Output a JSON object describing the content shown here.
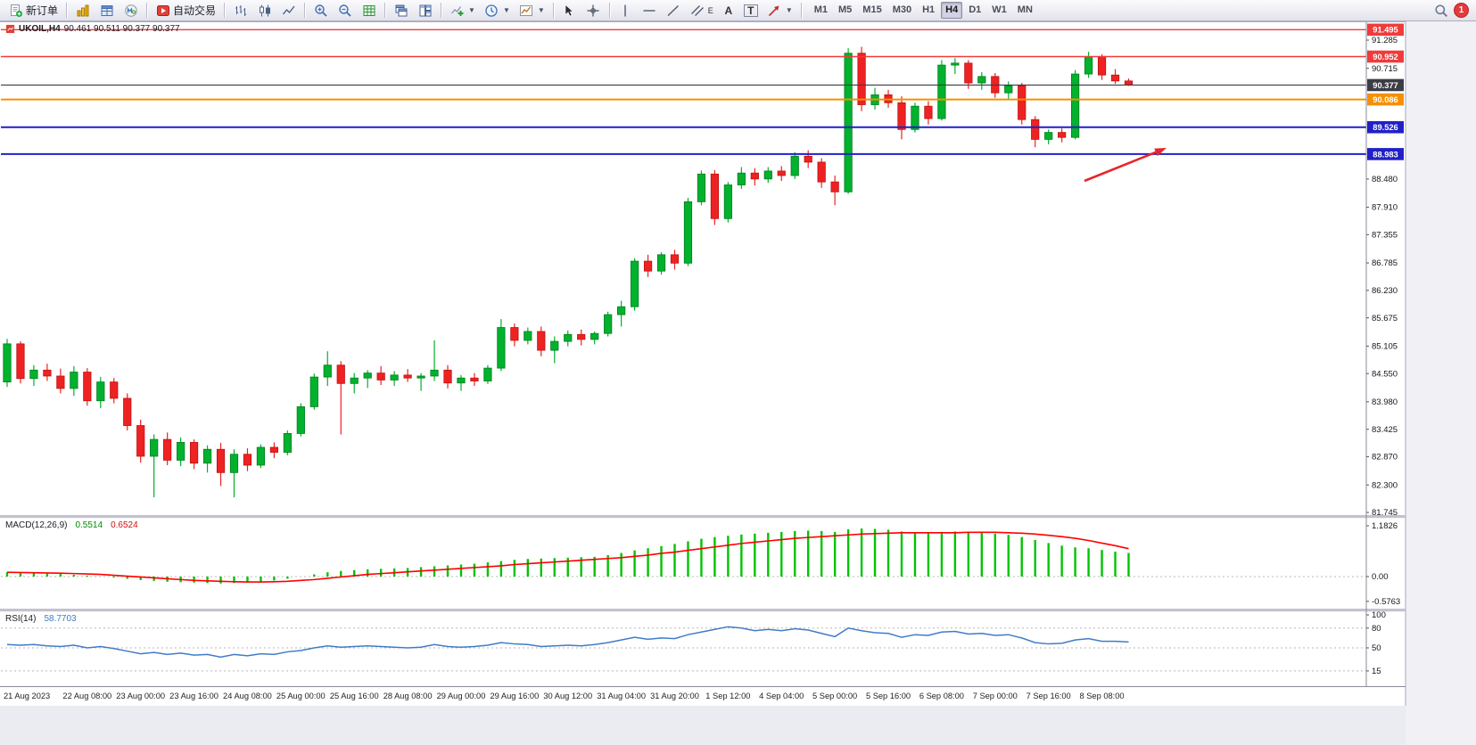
{
  "toolbar": {
    "new_order": "新订单",
    "auto_trading": "自动交易",
    "text_tool": "A",
    "label_tool": "T",
    "channel_letter": "E",
    "timeframes": [
      "M1",
      "M5",
      "M15",
      "M30",
      "H1",
      "H4",
      "D1",
      "W1",
      "MN"
    ],
    "active_timeframe": "H4",
    "notification_count": "1"
  },
  "chart_header": {
    "symbol_period": "UKOIL,H4",
    "ohlc": "90.461 90.511 90.377 90.377"
  },
  "indicators": {
    "macd": {
      "label": "MACD(12,26,9)",
      "main_value": "0.5514",
      "signal_value": "0.6524"
    },
    "rsi": {
      "label": "RSI(14)",
      "value": "58.7703"
    }
  },
  "price_scale": {
    "ticks": [
      "91.285",
      "90.715",
      "88.480",
      "87.910",
      "87.355",
      "86.785",
      "86.230",
      "85.675",
      "85.105",
      "84.550",
      "83.980",
      "83.425",
      "82.870",
      "82.300",
      "81.745"
    ]
  },
  "chart_data": {
    "type": "candlestick",
    "symbol": "UKOIL",
    "period": "H4",
    "ylim": [
      81.6,
      91.66
    ],
    "colors": {
      "up": "#00b22d",
      "up_stroke": "#007d1f",
      "down": "#ee2222",
      "down_stroke": "#bf1010",
      "macd_hist": "#00c400",
      "macd_signal": "#ff0000",
      "rsi_line": "#3f7cc8",
      "annotation": "#e8252a"
    },
    "hlines": [
      {
        "price": 91.495,
        "label": "91.495",
        "color": "#f03b3b",
        "width": 1.4
      },
      {
        "price": 90.952,
        "label": "90.952",
        "color": "#f03b3b",
        "width": 1.4
      },
      {
        "price": 90.377,
        "label": "90.377",
        "color": "#3c3c46",
        "width": 1.2
      },
      {
        "price": 90.086,
        "label": "90.086",
        "color": "#f59000",
        "width": 2
      },
      {
        "price": 89.526,
        "label": "89.526",
        "color": "#2020c8",
        "width": 2
      },
      {
        "price": 88.983,
        "label": "88.983",
        "color": "#2020c8",
        "width": 2
      }
    ],
    "candles": [
      [
        84.38,
        85.25,
        84.28,
        85.15
      ],
      [
        85.15,
        85.2,
        84.35,
        84.45
      ],
      [
        84.45,
        84.72,
        84.3,
        84.62
      ],
      [
        84.62,
        84.75,
        84.4,
        84.5
      ],
      [
        84.5,
        84.65,
        84.15,
        84.25
      ],
      [
        84.25,
        84.7,
        84.1,
        84.58
      ],
      [
        84.58,
        84.66,
        83.9,
        84.0
      ],
      [
        84.0,
        84.48,
        83.85,
        84.38
      ],
      [
        84.38,
        84.46,
        83.95,
        84.05
      ],
      [
        84.05,
        84.15,
        83.4,
        83.5
      ],
      [
        83.5,
        83.62,
        82.75,
        82.88
      ],
      [
        82.88,
        83.32,
        82.05,
        83.22
      ],
      [
        83.22,
        83.36,
        82.7,
        82.8
      ],
      [
        82.8,
        83.26,
        82.68,
        83.16
      ],
      [
        83.16,
        83.22,
        82.62,
        82.74
      ],
      [
        82.74,
        83.1,
        82.55,
        83.02
      ],
      [
        83.02,
        83.15,
        82.28,
        82.55
      ],
      [
        82.55,
        83.02,
        82.05,
        82.92
      ],
      [
        82.92,
        83.04,
        82.58,
        82.7
      ],
      [
        82.7,
        83.12,
        82.64,
        83.06
      ],
      [
        83.06,
        83.16,
        82.84,
        82.96
      ],
      [
        82.96,
        83.4,
        82.9,
        83.34
      ],
      [
        83.34,
        83.95,
        83.28,
        83.88
      ],
      [
        83.88,
        84.55,
        83.82,
        84.48
      ],
      [
        84.48,
        85.0,
        84.3,
        84.72
      ],
      [
        84.72,
        84.8,
        83.32,
        84.35
      ],
      [
        84.35,
        84.56,
        84.15,
        84.46
      ],
      [
        84.46,
        84.62,
        84.26,
        84.56
      ],
      [
        84.56,
        84.7,
        84.32,
        84.42
      ],
      [
        84.42,
        84.6,
        84.3,
        84.52
      ],
      [
        84.52,
        84.64,
        84.38,
        84.46
      ],
      [
        84.46,
        84.56,
        84.2,
        84.5
      ],
      [
        84.5,
        85.22,
        84.4,
        84.62
      ],
      [
        84.62,
        84.72,
        84.25,
        84.36
      ],
      [
        84.36,
        84.52,
        84.2,
        84.46
      ],
      [
        84.46,
        84.56,
        84.3,
        84.4
      ],
      [
        84.4,
        84.72,
        84.34,
        84.66
      ],
      [
        84.66,
        85.65,
        84.6,
        85.48
      ],
      [
        85.48,
        85.56,
        85.1,
        85.22
      ],
      [
        85.22,
        85.48,
        85.14,
        85.4
      ],
      [
        85.4,
        85.5,
        84.9,
        85.02
      ],
      [
        85.02,
        85.3,
        84.76,
        85.2
      ],
      [
        85.2,
        85.42,
        85.1,
        85.34
      ],
      [
        85.34,
        85.44,
        85.12,
        85.24
      ],
      [
        85.24,
        85.4,
        85.14,
        85.36
      ],
      [
        85.36,
        85.8,
        85.3,
        85.74
      ],
      [
        85.74,
        86.02,
        85.5,
        85.9
      ],
      [
        85.9,
        86.88,
        85.82,
        86.82
      ],
      [
        86.82,
        86.95,
        86.5,
        86.62
      ],
      [
        86.62,
        87.0,
        86.55,
        86.95
      ],
      [
        86.95,
        87.05,
        86.65,
        86.78
      ],
      [
        86.78,
        88.1,
        86.72,
        88.02
      ],
      [
        88.02,
        88.65,
        87.95,
        88.58
      ],
      [
        88.58,
        88.66,
        87.55,
        87.68
      ],
      [
        87.68,
        88.42,
        87.6,
        88.36
      ],
      [
        88.36,
        88.72,
        88.28,
        88.6
      ],
      [
        88.6,
        88.7,
        88.35,
        88.48
      ],
      [
        88.48,
        88.72,
        88.4,
        88.64
      ],
      [
        88.64,
        88.74,
        88.44,
        88.55
      ],
      [
        88.55,
        89.02,
        88.48,
        88.94
      ],
      [
        88.94,
        89.06,
        88.7,
        88.82
      ],
      [
        88.82,
        88.9,
        88.3,
        88.42
      ],
      [
        88.42,
        88.55,
        87.95,
        88.22
      ],
      [
        88.22,
        91.12,
        88.18,
        91.02
      ],
      [
        91.02,
        91.15,
        89.85,
        89.98
      ],
      [
        89.98,
        90.32,
        89.88,
        90.18
      ],
      [
        90.18,
        90.28,
        89.92,
        90.02
      ],
      [
        90.02,
        90.15,
        89.28,
        89.48
      ],
      [
        89.48,
        90.02,
        89.42,
        89.95
      ],
      [
        89.95,
        90.05,
        89.58,
        89.7
      ],
      [
        89.7,
        90.88,
        89.66,
        90.78
      ],
      [
        90.78,
        90.92,
        90.6,
        90.82
      ],
      [
        90.82,
        90.88,
        90.3,
        90.42
      ],
      [
        90.42,
        90.64,
        90.28,
        90.55
      ],
      [
        90.55,
        90.62,
        90.12,
        90.22
      ],
      [
        90.22,
        90.45,
        90.08,
        90.36
      ],
      [
        90.36,
        90.42,
        89.58,
        89.68
      ],
      [
        89.68,
        89.75,
        89.12,
        89.28
      ],
      [
        89.28,
        89.48,
        89.18,
        89.42
      ],
      [
        89.42,
        89.5,
        89.22,
        89.32
      ],
      [
        89.32,
        90.68,
        89.28,
        90.6
      ],
      [
        90.6,
        91.05,
        90.52,
        90.95
      ],
      [
        90.95,
        91.0,
        90.48,
        90.58
      ],
      [
        90.58,
        90.7,
        90.4,
        90.46
      ],
      [
        90.46,
        90.51,
        90.36,
        90.38
      ]
    ],
    "time_labels": [
      "21 Aug 2023",
      "22 Aug 08:00",
      "23 Aug 00:00",
      "23 Aug 16:00",
      "24 Aug 08:00",
      "25 Aug 00:00",
      "25 Aug 16:00",
      "28 Aug 08:00",
      "29 Aug 00:00",
      "29 Aug 16:00",
      "30 Aug 12:00",
      "31 Aug 04:00",
      "31 Aug 20:00",
      "1 Sep 12:00",
      "4 Sep 04:00",
      "5 Sep 00:00",
      "5 Sep 16:00",
      "6 Sep 08:00",
      "7 Sep 00:00",
      "7 Sep 16:00",
      "8 Sep 08:00"
    ],
    "label_first_candle": 2,
    "label_every": 4,
    "macd": {
      "scale": [
        "1.1826",
        "0.00",
        "-0.5763"
      ],
      "ylim": [
        -0.5763,
        1.1826
      ],
      "histogram": [
        0.1,
        0.09,
        0.08,
        0.07,
        0.06,
        0.04,
        0.02,
        0.0,
        -0.02,
        -0.05,
        -0.08,
        -0.1,
        -0.12,
        -0.13,
        -0.14,
        -0.15,
        -0.16,
        -0.15,
        -0.14,
        -0.12,
        -0.09,
        -0.05,
        0.0,
        0.05,
        0.1,
        0.13,
        0.15,
        0.17,
        0.18,
        0.19,
        0.2,
        0.22,
        0.24,
        0.26,
        0.28,
        0.3,
        0.33,
        0.36,
        0.39,
        0.41,
        0.42,
        0.43,
        0.44,
        0.45,
        0.46,
        0.5,
        0.55,
        0.61,
        0.66,
        0.71,
        0.76,
        0.82,
        0.88,
        0.92,
        0.95,
        0.98,
        1.0,
        1.02,
        1.04,
        1.06,
        1.07,
        1.06,
        1.04,
        1.1,
        1.12,
        1.11,
        1.09,
        1.05,
        1.03,
        1.02,
        1.04,
        1.05,
        1.04,
        1.02,
        1.0,
        0.97,
        0.92,
        0.85,
        0.78,
        0.72,
        0.68,
        0.66,
        0.62,
        0.58,
        0.55
      ],
      "signal": [
        0.1,
        0.095,
        0.09,
        0.085,
        0.08,
        0.07,
        0.06,
        0.05,
        0.03,
        0.01,
        -0.01,
        -0.03,
        -0.05,
        -0.07,
        -0.09,
        -0.1,
        -0.11,
        -0.12,
        -0.125,
        -0.125,
        -0.12,
        -0.11,
        -0.09,
        -0.07,
        -0.04,
        -0.01,
        0.02,
        0.05,
        0.07,
        0.09,
        0.11,
        0.13,
        0.15,
        0.17,
        0.19,
        0.21,
        0.23,
        0.25,
        0.28,
        0.3,
        0.32,
        0.34,
        0.36,
        0.38,
        0.4,
        0.42,
        0.44,
        0.47,
        0.5,
        0.54,
        0.57,
        0.61,
        0.65,
        0.69,
        0.73,
        0.77,
        0.8,
        0.83,
        0.86,
        0.89,
        0.91,
        0.93,
        0.95,
        0.97,
        0.99,
        1.0,
        1.01,
        1.02,
        1.02,
        1.02,
        1.02,
        1.02,
        1.03,
        1.03,
        1.03,
        1.02,
        1.01,
        0.99,
        0.96,
        0.93,
        0.89,
        0.84,
        0.78,
        0.72,
        0.65
      ]
    },
    "rsi": {
      "scale": [
        "100",
        "80",
        "50",
        "15"
      ],
      "levels": [
        80,
        50,
        15
      ],
      "ylim": [
        0,
        100
      ],
      "values": [
        55,
        54,
        55,
        53,
        52,
        54,
        50,
        52,
        49,
        45,
        41,
        43,
        40,
        42,
        39,
        40,
        36,
        40,
        38,
        41,
        40,
        44,
        46,
        50,
        53,
        51,
        52,
        53,
        52,
        51,
        50,
        51,
        55,
        52,
        51,
        52,
        54,
        58,
        56,
        55,
        52,
        53,
        54,
        53,
        55,
        58,
        62,
        66,
        63,
        65,
        64,
        70,
        74,
        78,
        82,
        80,
        76,
        78,
        76,
        79,
        77,
        72,
        67,
        80,
        76,
        73,
        72,
        66,
        70,
        69,
        74,
        75,
        71,
        72,
        69,
        70,
        65,
        58,
        56,
        57,
        62,
        64,
        60,
        60,
        59
      ]
    },
    "annotation": {
      "type": "arrow",
      "from": [
        1216,
        203
      ],
      "to": [
        1308,
        166
      ]
    }
  }
}
